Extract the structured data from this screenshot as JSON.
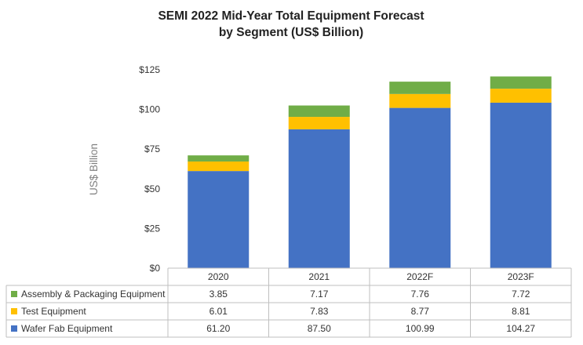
{
  "chart_data": {
    "type": "bar",
    "stacked": true,
    "title_line1": "SEMI 2022 Mid-Year Total Equipment Forecast",
    "title_line2": "by Segment (US$ Billion)",
    "ylabel": "US$ Billion",
    "ylim": [
      0,
      125
    ],
    "yticks": [
      "$0",
      "$25",
      "$50",
      "$75",
      "$100",
      "$125"
    ],
    "categories": [
      "2020",
      "2021",
      "2022F",
      "2023F"
    ],
    "series": [
      {
        "name": "Wafer Fab Equipment",
        "color": "#4472C4",
        "values": [
          61.2,
          87.5,
          100.99,
          104.27
        ],
        "labels": [
          "61.20",
          "87.50",
          "100.99",
          "104.27"
        ]
      },
      {
        "name": "Test Equipment",
        "color": "#FFC000",
        "values": [
          6.01,
          7.83,
          8.77,
          8.81
        ],
        "labels": [
          "6.01",
          "7.83",
          "8.77",
          "8.81"
        ]
      },
      {
        "name": "Assembly & Packaging Equipment",
        "color": "#70AD47",
        "values": [
          3.85,
          7.17,
          7.76,
          7.72
        ],
        "labels": [
          "3.85",
          "7.17",
          "7.76",
          "7.72"
        ]
      }
    ],
    "table_row_order": [
      "Assembly & Packaging Equipment",
      "Test Equipment",
      "Wafer Fab Equipment"
    ],
    "gridlines": false,
    "legend": "data-table"
  }
}
